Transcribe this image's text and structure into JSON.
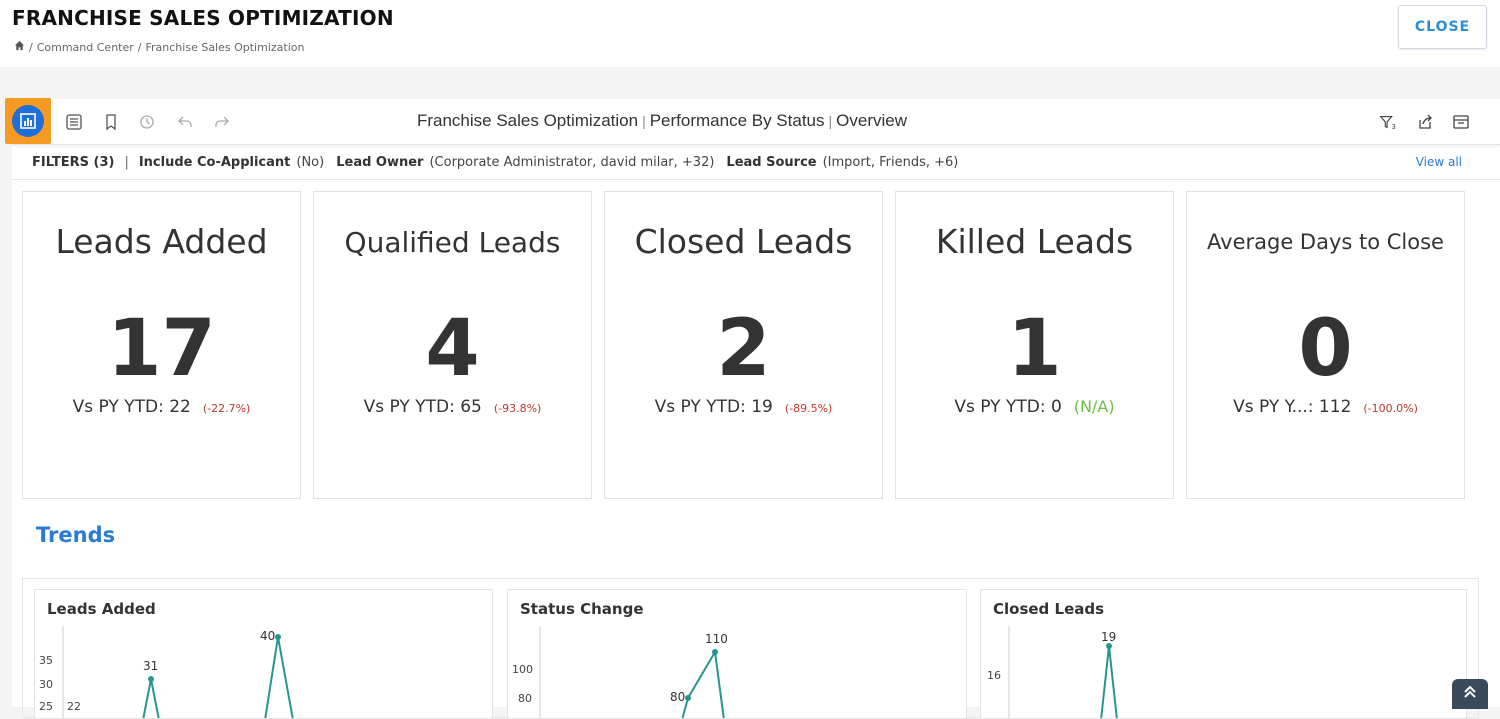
{
  "header": {
    "title": "FRANCHISE SALES OPTIMIZATION",
    "breadcrumb": [
      "Command Center",
      "Franchise Sales Optimization"
    ],
    "close_label": "CLOSE"
  },
  "toolbar": {
    "title_parts": [
      "Franchise Sales Optimization",
      "Performance By Status",
      "Overview"
    ],
    "filter_count_badge": "3"
  },
  "filters": {
    "label": "FILTERS (3)",
    "items": [
      {
        "name": "Include Co-Applicant",
        "value": "(No)"
      },
      {
        "name": "Lead Owner",
        "value": "(Corporate Administrator, david milar, +32)"
      },
      {
        "name": "Lead Source",
        "value": "(Import, Friends, +6)"
      }
    ],
    "view_all": "View all"
  },
  "kpis": [
    {
      "title": "Leads Added",
      "value": "17",
      "sub": "Vs PY YTD: 22",
      "pct": "(-22.7%)"
    },
    {
      "title": "Qualified Leads",
      "value": "4",
      "sub": "Vs PY YTD: 65",
      "pct": "(-93.8%)"
    },
    {
      "title": "Closed Leads",
      "value": "2",
      "sub": "Vs PY YTD: 19",
      "pct": "(-89.5%)"
    },
    {
      "title": "Killed Leads",
      "value": "1",
      "sub": "Vs PY YTD: 0",
      "pct": "(N/A)"
    },
    {
      "title": "Average Days to Close",
      "value": "0",
      "sub": "Vs PY Y...: 112",
      "pct": "(-100.0%)"
    }
  ],
  "trends": {
    "title": "Trends",
    "cards": [
      {
        "title": "Leads Added",
        "ticks": [
          "35",
          "30",
          "25",
          "22"
        ],
        "labels": [
          "31",
          "40"
        ]
      },
      {
        "title": "Status Change",
        "ticks": [
          "100",
          "80"
        ],
        "labels": [
          "80",
          "110"
        ]
      },
      {
        "title": "Closed Leads",
        "ticks": [
          "16"
        ],
        "labels": [
          "19"
        ]
      }
    ]
  },
  "colors": {
    "accent": "#2a7bd6",
    "line": "#26968c",
    "negative": "#c0392b",
    "na": "#6abf45",
    "highlight": "#f59a23"
  },
  "icons": [
    "home-icon",
    "dashboard-icon",
    "list-icon",
    "bookmark-icon",
    "history-icon",
    "undo-icon",
    "redo-icon",
    "filter-icon",
    "share-icon",
    "calendar-icon",
    "scroll-up-icon"
  ]
}
